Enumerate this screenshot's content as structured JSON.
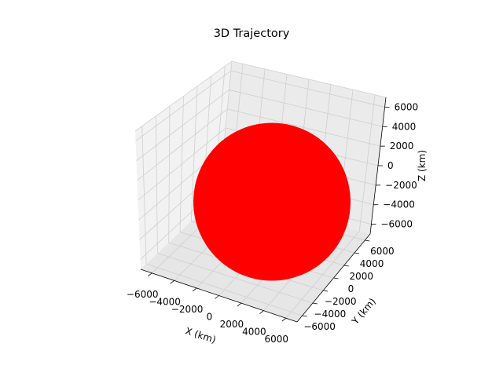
{
  "chart_data": {
    "type": "scatter",
    "projection": "3d",
    "title": "3D Trajectory",
    "xlabel": "X (km)",
    "ylabel": "Y (km)",
    "zlabel": "Z (km)",
    "xlim": [
      -7000,
      7000
    ],
    "ylim": [
      -7000,
      7000
    ],
    "zlim": [
      -7000,
      7000
    ],
    "x_ticks": [
      -6000,
      -4000,
      -2000,
      0,
      2000,
      4000,
      6000
    ],
    "y_ticks": [
      -6000,
      -4000,
      -2000,
      0,
      2000,
      4000,
      6000
    ],
    "z_ticks": [
      -6000,
      -4000,
      -2000,
      0,
      2000,
      4000,
      6000
    ],
    "x_tick_labels": [
      "−6000",
      "−4000",
      "−2000",
      "0",
      "2000",
      "4000",
      "6000"
    ],
    "y_tick_labels": [
      "−6000",
      "−4000",
      "−2000",
      "0",
      "2000",
      "4000",
      "6000"
    ],
    "z_tick_labels": [
      "−6000",
      "−4000",
      "−2000",
      "0",
      "2000",
      "4000",
      "6000"
    ],
    "grid": true,
    "series": [
      {
        "shape": "sphere",
        "color": "#ff0000",
        "center": [
          0,
          0,
          0
        ],
        "radius": 6371
      }
    ]
  }
}
